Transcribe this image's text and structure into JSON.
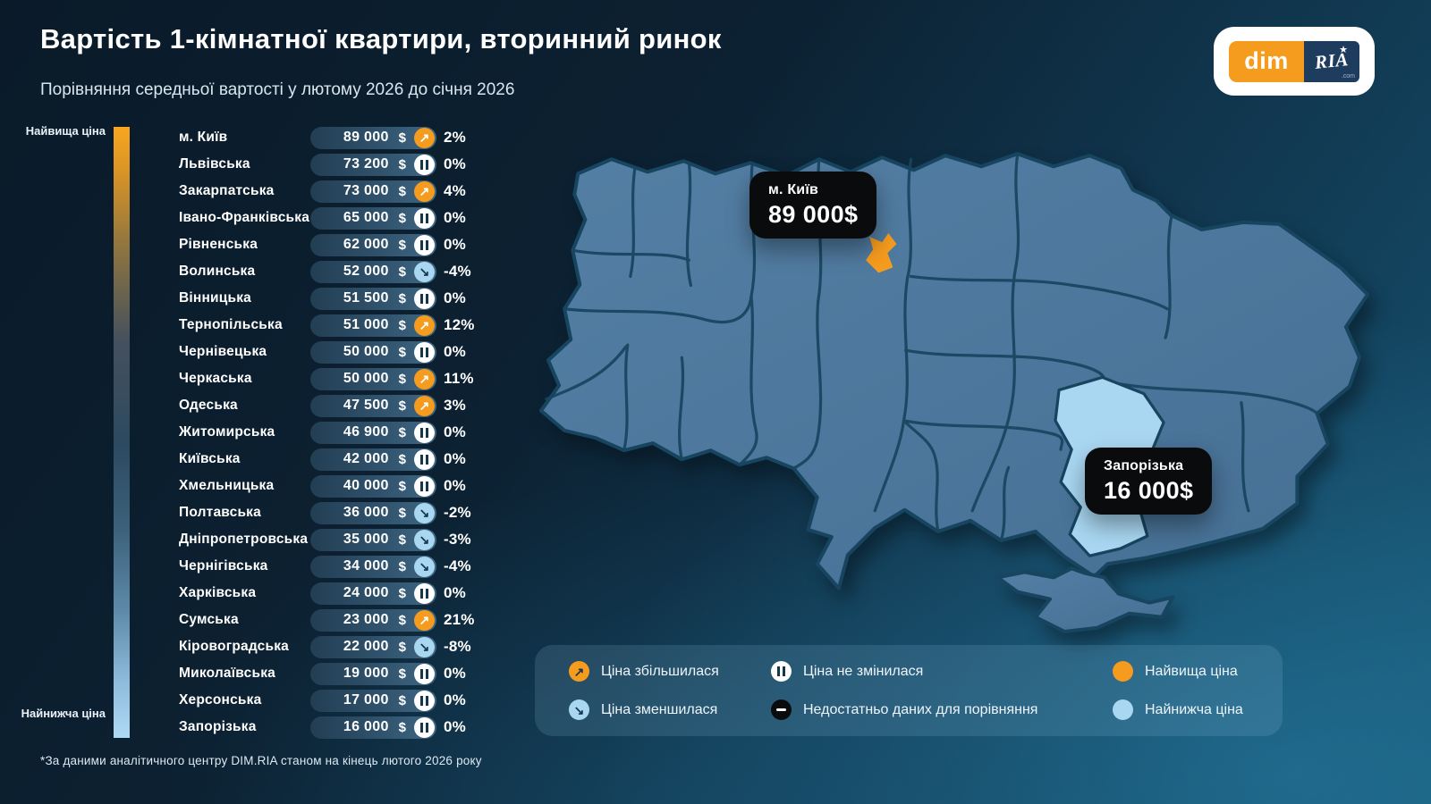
{
  "header": {
    "title": "Вартість 1-кімнатної квартири, вторинний ринок",
    "subtitle": "Порівняння середньої вартості у лютому 2026 до січня 2026"
  },
  "logo": {
    "dim": "dim",
    "ria": "RIA",
    "star": "★",
    "com": ".com"
  },
  "scale": {
    "top_label": "Найвища ціна",
    "bottom_label": "Найнижча ціна"
  },
  "regions": [
    {
      "name": "м. Київ",
      "price": "89 000",
      "currency": "$",
      "change": "2%",
      "trend": "up"
    },
    {
      "name": "Львівська",
      "price": "73 200",
      "currency": "$",
      "change": "0%",
      "trend": "same"
    },
    {
      "name": "Закарпатська",
      "price": "73 000",
      "currency": "$",
      "change": "4%",
      "trend": "up"
    },
    {
      "name": "Івано-Франківська",
      "price": "65 000",
      "currency": "$",
      "change": "0%",
      "trend": "same"
    },
    {
      "name": "Рівненська",
      "price": "62 000",
      "currency": "$",
      "change": "0%",
      "trend": "same"
    },
    {
      "name": "Волинська",
      "price": "52 000",
      "currency": "$",
      "change": "-4%",
      "trend": "down"
    },
    {
      "name": "Вінницька",
      "price": "51 500",
      "currency": "$",
      "change": "0%",
      "trend": "same"
    },
    {
      "name": "Тернопільська",
      "price": "51 000",
      "currency": "$",
      "change": "12%",
      "trend": "up"
    },
    {
      "name": "Чернівецька",
      "price": "50 000",
      "currency": "$",
      "change": "0%",
      "trend": "same"
    },
    {
      "name": "Черкаська",
      "price": "50 000",
      "currency": "$",
      "change": "11%",
      "trend": "up"
    },
    {
      "name": "Одеська",
      "price": "47 500",
      "currency": "$",
      "change": "3%",
      "trend": "up"
    },
    {
      "name": "Житомирська",
      "price": "46 900",
      "currency": "$",
      "change": "0%",
      "trend": "same"
    },
    {
      "name": "Київська",
      "price": "42 000",
      "currency": "$",
      "change": "0%",
      "trend": "same"
    },
    {
      "name": "Хмельницька",
      "price": "40 000",
      "currency": "$",
      "change": "0%",
      "trend": "same"
    },
    {
      "name": "Полтавська",
      "price": "36 000",
      "currency": "$",
      "change": "-2%",
      "trend": "down"
    },
    {
      "name": "Дніпропетровська",
      "price": "35 000",
      "currency": "$",
      "change": "-3%",
      "trend": "down"
    },
    {
      "name": "Чернігівська",
      "price": "34 000",
      "currency": "$",
      "change": "-4%",
      "trend": "down"
    },
    {
      "name": "Харківська",
      "price": "24 000",
      "currency": "$",
      "change": "0%",
      "trend": "same"
    },
    {
      "name": "Сумська",
      "price": "23 000",
      "currency": "$",
      "change": "21%",
      "trend": "up"
    },
    {
      "name": "Кіровоградська",
      "price": "22 000",
      "currency": "$",
      "change": "-8%",
      "trend": "down"
    },
    {
      "name": "Миколаївська",
      "price": "19 000",
      "currency": "$",
      "change": "0%",
      "trend": "same"
    },
    {
      "name": "Херсонська",
      "price": "17 000",
      "currency": "$",
      "change": "0%",
      "trend": "same"
    },
    {
      "name": "Запорізька",
      "price": "16 000",
      "currency": "$",
      "change": "0%",
      "trend": "same"
    }
  ],
  "trends": {
    "up": {
      "glyph": "↗"
    },
    "down": {
      "glyph": "↘"
    },
    "same": {
      "glyph": ""
    },
    "nodata": {
      "glyph": ""
    }
  },
  "map": {
    "callouts": [
      {
        "title": "м. Київ",
        "value": "89 000$"
      },
      {
        "title": "Запорізька",
        "value": "16 000$"
      }
    ],
    "highlight_high": "м. Київ",
    "highlight_low": "Запорізька"
  },
  "legend": {
    "items": [
      {
        "type": "up",
        "label": "Ціна збільшилася"
      },
      {
        "type": "same",
        "label": "Ціна не змінилася"
      },
      {
        "type": "high",
        "label": "Найвища ціна"
      },
      {
        "type": "down",
        "label": "Ціна зменшилася"
      },
      {
        "type": "nodata",
        "label": "Недостатньо даних для порівняння"
      },
      {
        "type": "low",
        "label": "Найнижча ціна"
      }
    ]
  },
  "footnote": "*За даними аналітичного центру DIM.RIA станом на кінець лютого 2026 року",
  "colors": {
    "accent_orange": "#F59B1E",
    "light_blue": "#A9D7F2",
    "map_fill": "#4D7BA0",
    "map_border": "#17455F",
    "callout_bg": "#0A0B0D",
    "background_dark": "#0A1A29",
    "background_teal": "#175674"
  },
  "chart_data": {
    "type": "table",
    "title": "Вартість 1-кімнатної квартири, вторинний ринок",
    "subtitle": "Порівняння середньої вартості у лютому 2026 до січня 2026",
    "unit": "USD",
    "categories": [
      "м. Київ",
      "Львівська",
      "Закарпатська",
      "Івано-Франківська",
      "Рівненська",
      "Волинська",
      "Вінницька",
      "Тернопільська",
      "Чернівецька",
      "Черкаська",
      "Одеська",
      "Житомирська",
      "Київська",
      "Хмельницька",
      "Полтавська",
      "Дніпропетровська",
      "Чернігівська",
      "Харківська",
      "Сумська",
      "Кіровоградська",
      "Миколаївська",
      "Херсонська",
      "Запорізька"
    ],
    "values": [
      89000,
      73200,
      73000,
      65000,
      62000,
      52000,
      51500,
      51000,
      50000,
      50000,
      47500,
      46900,
      42000,
      40000,
      36000,
      35000,
      34000,
      24000,
      23000,
      22000,
      19000,
      17000,
      16000
    ],
    "changes_pct": [
      2,
      0,
      4,
      0,
      0,
      -4,
      0,
      12,
      0,
      11,
      3,
      0,
      0,
      0,
      -2,
      -3,
      -4,
      0,
      21,
      -8,
      0,
      0,
      0
    ],
    "highest": {
      "region": "м. Київ",
      "value": 89000
    },
    "lowest": {
      "region": "Запорізька",
      "value": 16000
    }
  }
}
